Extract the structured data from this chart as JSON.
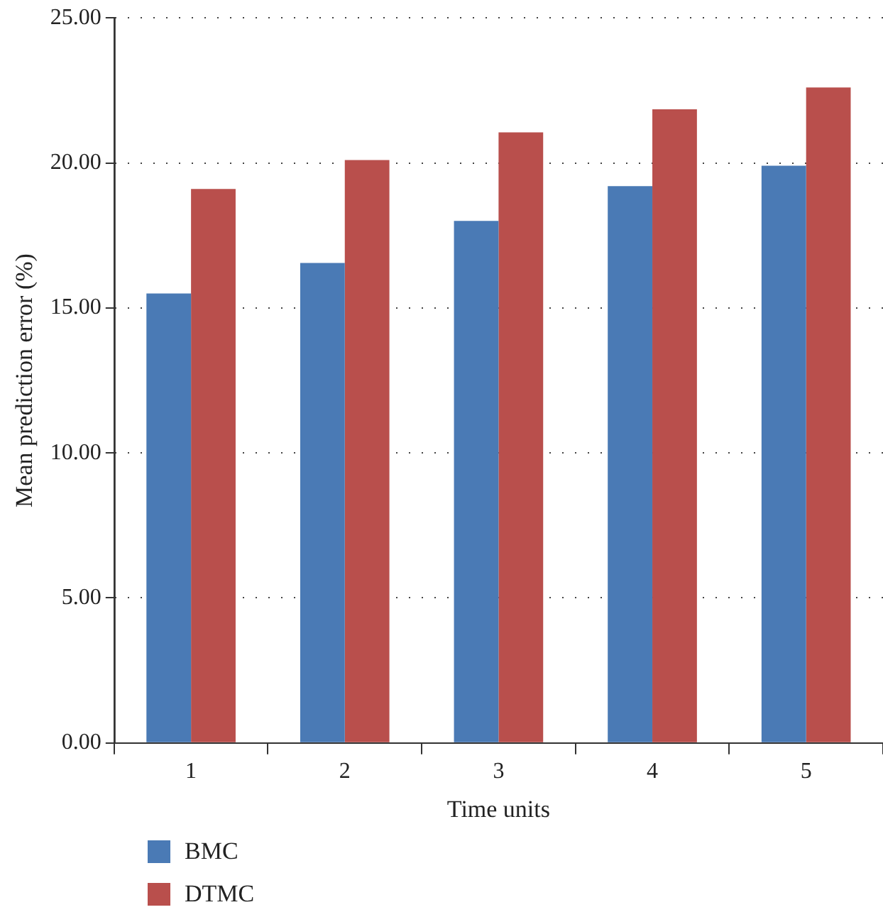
{
  "chart_data": {
    "type": "bar",
    "xlabel": "Time units",
    "ylabel": "Mean prediction error (%)",
    "categories": [
      "1",
      "2",
      "3",
      "4",
      "5"
    ],
    "series": [
      {
        "name": "BMC",
        "color": "#4a7ab5",
        "values": [
          15.5,
          16.55,
          18.0,
          19.2,
          19.9
        ]
      },
      {
        "name": "DTMC",
        "color": "#b94f4c",
        "values": [
          19.1,
          20.1,
          21.05,
          21.85,
          22.6
        ]
      }
    ],
    "ylim": [
      0,
      25
    ],
    "yticks": [
      {
        "value": 0,
        "label": "0.00"
      },
      {
        "value": 5,
        "label": "5.00"
      },
      {
        "value": 10,
        "label": "10.00"
      },
      {
        "value": 15,
        "label": "15.00"
      },
      {
        "value": 20,
        "label": "20.00"
      },
      {
        "value": 25,
        "label": "25.00"
      }
    ],
    "grid": "y",
    "legend": "bottom left"
  }
}
